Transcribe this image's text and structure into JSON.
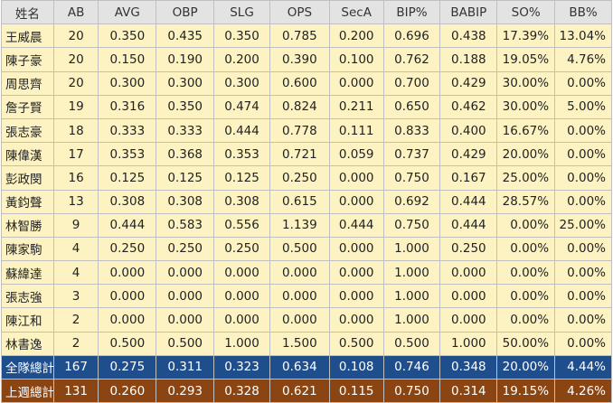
{
  "headers": [
    "姓名",
    "AB",
    "AVG",
    "OBP",
    "SLG",
    "OPS",
    "SecA",
    "BIP%",
    "BABIP",
    "SO%",
    "BB%"
  ],
  "players": [
    [
      "王威晨",
      "20",
      "0.350",
      "0.435",
      "0.350",
      "0.785",
      "0.200",
      "0.696",
      "0.438",
      "17.39%",
      "13.04%"
    ],
    [
      "陳子豪",
      "20",
      "0.150",
      "0.190",
      "0.200",
      "0.390",
      "0.100",
      "0.762",
      "0.188",
      "19.05%",
      "4.76%"
    ],
    [
      "周思齊",
      "20",
      "0.300",
      "0.300",
      "0.300",
      "0.600",
      "0.000",
      "0.700",
      "0.429",
      "30.00%",
      "0.00%"
    ],
    [
      "詹子賢",
      "19",
      "0.316",
      "0.350",
      "0.474",
      "0.824",
      "0.211",
      "0.650",
      "0.462",
      "30.00%",
      "5.00%"
    ],
    [
      "張志豪",
      "18",
      "0.333",
      "0.333",
      "0.444",
      "0.778",
      "0.111",
      "0.833",
      "0.400",
      "16.67%",
      "0.00%"
    ],
    [
      "陳偉漢",
      "17",
      "0.353",
      "0.368",
      "0.353",
      "0.721",
      "0.059",
      "0.737",
      "0.429",
      "20.00%",
      "0.00%"
    ],
    [
      "彭政閔",
      "16",
      "0.125",
      "0.125",
      "0.125",
      "0.250",
      "0.000",
      "0.750",
      "0.167",
      "25.00%",
      "0.00%"
    ],
    [
      "黃鈞聲",
      "13",
      "0.308",
      "0.308",
      "0.308",
      "0.615",
      "0.000",
      "0.692",
      "0.444",
      "28.57%",
      "0.00%"
    ],
    [
      "林智勝",
      "9",
      "0.444",
      "0.583",
      "0.556",
      "1.139",
      "0.444",
      "0.750",
      "0.444",
      "0.00%",
      "25.00%"
    ],
    [
      "陳家駒",
      "4",
      "0.250",
      "0.250",
      "0.250",
      "0.500",
      "0.000",
      "1.000",
      "0.250",
      "0.00%",
      "0.00%"
    ],
    [
      "蘇緯達",
      "4",
      "0.000",
      "0.000",
      "0.000",
      "0.000",
      "0.000",
      "1.000",
      "0.000",
      "0.00%",
      "0.00%"
    ],
    [
      "張志強",
      "3",
      "0.000",
      "0.000",
      "0.000",
      "0.000",
      "0.000",
      "1.000",
      "0.000",
      "0.00%",
      "0.00%"
    ],
    [
      "陳江和",
      "2",
      "0.000",
      "0.000",
      "0.000",
      "0.000",
      "0.000",
      "1.000",
      "0.000",
      "0.00%",
      "0.00%"
    ],
    [
      "林書逸",
      "2",
      "0.500",
      "0.500",
      "1.000",
      "1.500",
      "0.500",
      "0.500",
      "1.000",
      "50.00%",
      "0.00%"
    ]
  ],
  "team_total": [
    "全隊總計",
    "167",
    "0.275",
    "0.311",
    "0.323",
    "0.634",
    "0.108",
    "0.746",
    "0.348",
    "20.00%",
    "4.44%"
  ],
  "last_week_total": [
    "上週總計",
    "131",
    "0.260",
    "0.293",
    "0.328",
    "0.621",
    "0.115",
    "0.750",
    "0.314",
    "19.15%",
    "4.26%"
  ],
  "colors": {
    "header_bg": "#e3e3e3",
    "row_bg": "#fdf3c2",
    "team_total_bg": "#1f4e8c",
    "last_week_bg": "#8b4513",
    "total_text": "#ffffff"
  }
}
